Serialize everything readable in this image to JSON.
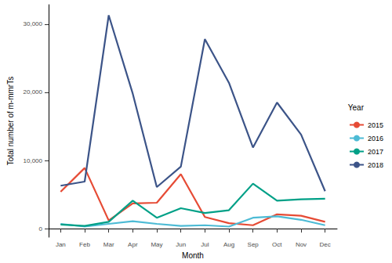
{
  "chart_data": {
    "type": "line",
    "x_label": "Month",
    "y_label": "Total number of m-mmrTs",
    "legend_title": "Year",
    "categories": [
      "Jan",
      "Feb",
      "Mar",
      "Apr",
      "May",
      "Jun",
      "Jul",
      "Aug",
      "Sep",
      "Oct",
      "Nov",
      "Dec"
    ],
    "series": [
      {
        "name": "2015",
        "color": "#e64b35",
        "values": [
          5400,
          8900,
          1200,
          3700,
          3800,
          8000,
          1700,
          800,
          500,
          2100,
          1900,
          1000
        ]
      },
      {
        "name": "2016",
        "color": "#4dbbd5",
        "values": [
          700,
          300,
          700,
          1100,
          700,
          400,
          500,
          300,
          1600,
          1800,
          1300,
          500
        ]
      },
      {
        "name": "2017",
        "color": "#00a087",
        "values": [
          600,
          400,
          1000,
          4100,
          1600,
          3000,
          2300,
          2700,
          6600,
          4100,
          4300,
          4400
        ]
      },
      {
        "name": "2018",
        "color": "#3c5488",
        "values": [
          6300,
          6900,
          31300,
          19800,
          6100,
          9100,
          27800,
          21400,
          11900,
          18500,
          13800,
          5500
        ]
      }
    ],
    "ylim": [
      -1250,
      32850
    ],
    "yticks": [
      0,
      {
        "value": 10000,
        "label": "10,000"
      },
      {
        "value": 20000,
        "label": "20,000"
      },
      {
        "value": 30000,
        "label": "30,000"
      }
    ],
    "grid": false,
    "legend": "right"
  }
}
